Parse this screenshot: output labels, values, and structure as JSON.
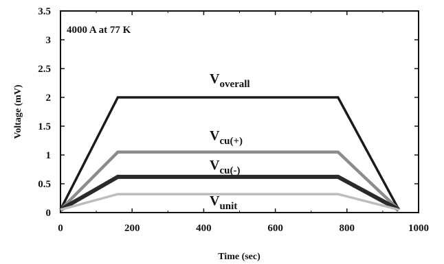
{
  "chart_data": {
    "type": "line",
    "annotation": "4000 A at 77 K",
    "xlabel": "Time (sec)",
    "ylabel": "Voltage (mV)",
    "xlim": [
      0,
      1000
    ],
    "ylim": [
      0,
      3.5
    ],
    "x_ticks": [
      "0",
      "200",
      "400",
      "600",
      "800",
      "1000"
    ],
    "y_ticks": [
      "0",
      "0.5",
      "1",
      "1.5",
      "2",
      "2.5",
      "3",
      "3.5"
    ],
    "grid": false,
    "series": [
      {
        "name": "V_overall",
        "label_main": "V",
        "label_sub": "overall",
        "color": "#1a1a1a",
        "points": [
          [
            0,
            0.05
          ],
          [
            160,
            2.0
          ],
          [
            775,
            2.0
          ],
          [
            945,
            0.05
          ]
        ]
      },
      {
        "name": "V_cu(+)",
        "label_main": "V",
        "label_sub": "cu(+)",
        "color": "#8c8c8c",
        "points": [
          [
            0,
            0.05
          ],
          [
            160,
            1.05
          ],
          [
            775,
            1.05
          ],
          [
            945,
            0.05
          ]
        ]
      },
      {
        "name": "V_cu(-)",
        "label_main": "V",
        "label_sub": "cu(-)",
        "color": "#2a2a2a",
        "points": [
          [
            0,
            0.05
          ],
          [
            160,
            0.62
          ],
          [
            775,
            0.62
          ],
          [
            945,
            0.05
          ]
        ]
      },
      {
        "name": "V_unit",
        "label_main": "V",
        "label_sub": "unit",
        "color": "#bdbdbd",
        "points": [
          [
            0,
            0.05
          ],
          [
            160,
            0.32
          ],
          [
            775,
            0.32
          ],
          [
            945,
            0.05
          ]
        ]
      }
    ]
  }
}
